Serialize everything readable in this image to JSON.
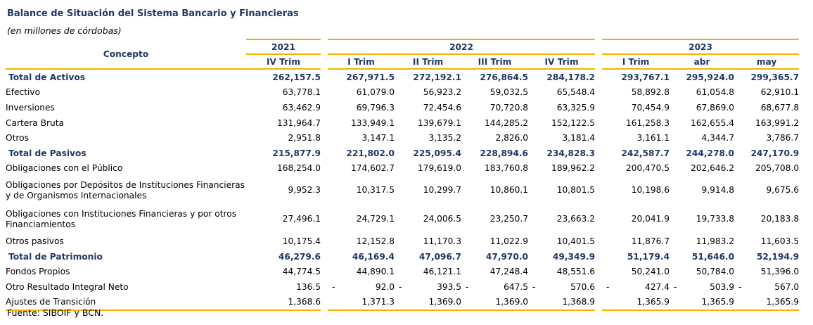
{
  "title": "Balance de Situación del Sistema Bancario y Financieras",
  "subtitle": "(en millones de córdobas)",
  "concepto_header": "Concepto",
  "years": [
    "2021",
    "2022",
    "2023"
  ],
  "periods": [
    "IV Trim",
    "I Trim",
    "II Trim",
    "III Trim",
    "IV Trim",
    "I Trim",
    "abr",
    "may"
  ],
  "rows": [
    {
      "label": "Total de Activos",
      "total": true,
      "values": [
        "262,157.5",
        "267,971.5",
        "272,192.1",
        "276,864.5",
        "284,178.2",
        "293,767.1",
        "295,924.0",
        "299,365.7"
      ]
    },
    {
      "label": "Efectivo",
      "values": [
        "63,778.1",
        "61,079.0",
        "56,923.2",
        "59,032.5",
        "65,548.4",
        "58,892.8",
        "61,054.8",
        "62,910.1"
      ]
    },
    {
      "label": "Inversiones",
      "values": [
        "63,462.9",
        "69,796.3",
        "72,454.6",
        "70,720.8",
        "63,325.9",
        "70,454.9",
        "67,869.0",
        "68,677.8"
      ]
    },
    {
      "label": "Cartera Bruta",
      "values": [
        "131,964.7",
        "133,949.1",
        "139,679.1",
        "144,285.2",
        "152,122.5",
        "161,258.3",
        "162,655.4",
        "163,991.2"
      ]
    },
    {
      "label": "Otros",
      "values": [
        "2,951.8",
        "3,147.1",
        "3,135.2",
        "2,826.0",
        "3,181.4",
        "3,161.1",
        "4,344.7",
        "3,786.7"
      ]
    },
    {
      "label": "Total de Pasivos",
      "total": true,
      "values": [
        "215,877.9",
        "221,802.0",
        "225,095.4",
        "228,894.6",
        "234,828.3",
        "242,587.7",
        "244,278.0",
        "247,170.9"
      ]
    },
    {
      "label": "Obligaciones con el Público",
      "values": [
        "168,254.0",
        "174,602.7",
        "179,619.0",
        "183,760.8",
        "189,962.2",
        "200,470.5",
        "202,646.2",
        "205,708.0"
      ]
    },
    {
      "label": "Obligaciones por Depósitos de Instituciones Financieras y de Organismos Internacionales",
      "tall": true,
      "values": [
        "9,952.3",
        "10,317.5",
        "10,299.7",
        "10,860.1",
        "10,801.5",
        "10,198.6",
        "9,914.8",
        "9,675.6"
      ]
    },
    {
      "label": "Obligaciones con Instituciones Financieras y por otros Financiamientos",
      "tall": true,
      "values": [
        "27,496.1",
        "24,729.1",
        "24,006.5",
        "23,250.7",
        "23,663.2",
        "20,041.9",
        "19,733.8",
        "20,183.8"
      ]
    },
    {
      "label": "Otros pasivos",
      "values": [
        "10,175.4",
        "12,152.8",
        "11,170.3",
        "11,022.9",
        "10,401.5",
        "11,876.7",
        "11,983.2",
        "11,603.5"
      ]
    },
    {
      "label": "Total de Patrimonio",
      "total": true,
      "values": [
        "46,279.6",
        "46,169.4",
        "47,096.7",
        "47,970.0",
        "49,349.9",
        "51,179.4",
        "51,646.0",
        "52,194.9"
      ]
    },
    {
      "label": "Fondos Propios",
      "values": [
        "44,774.5",
        "44,890.1",
        "46,121.1",
        "47,248.4",
        "48,551.6",
        "50,241.0",
        "50,784.0",
        "51,396.0"
      ]
    },
    {
      "label": "Otro Resultado Integral Neto",
      "values": [
        "136.5",
        "-|92.0",
        "-|393.5",
        "-|647.5",
        "-|570.6",
        "-|427.4",
        "-|503.9",
        "-|567.0"
      ]
    },
    {
      "label": "Ajustes de Transición",
      "values": [
        "1,368.6",
        "1,371.3",
        "1,369.0",
        "1,369.0",
        "1,368.9",
        "1,365.9",
        "1,365.9",
        "1,365.9"
      ]
    }
  ],
  "source": "Fuente: SIBOIF y BCN."
}
